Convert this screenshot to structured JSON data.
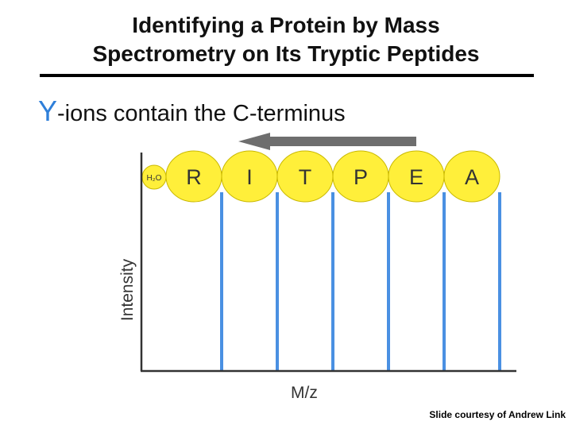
{
  "slide": {
    "title_line1": "Identifying a Protein by Mass",
    "title_line2": "Spectrometry on Its Tryptic Peptides",
    "subtitle_letter": "Y",
    "subtitle_rest": "-ions contain the C-terminus",
    "credit": "Slide courtesy of Andrew Link"
  },
  "diagram": {
    "xlabel": "M/z",
    "ylabel": "Intensity",
    "water_label": "H₂O",
    "residues": [
      "R",
      "I",
      "T",
      "P",
      "E",
      "A"
    ],
    "arrow_direction": "left",
    "colors": {
      "circle_fill": "#ffef3a",
      "circle_stroke": "#c9b800",
      "peak": "#4a90e2",
      "arrow": "#6e6e6e",
      "axis": "#333333"
    }
  }
}
